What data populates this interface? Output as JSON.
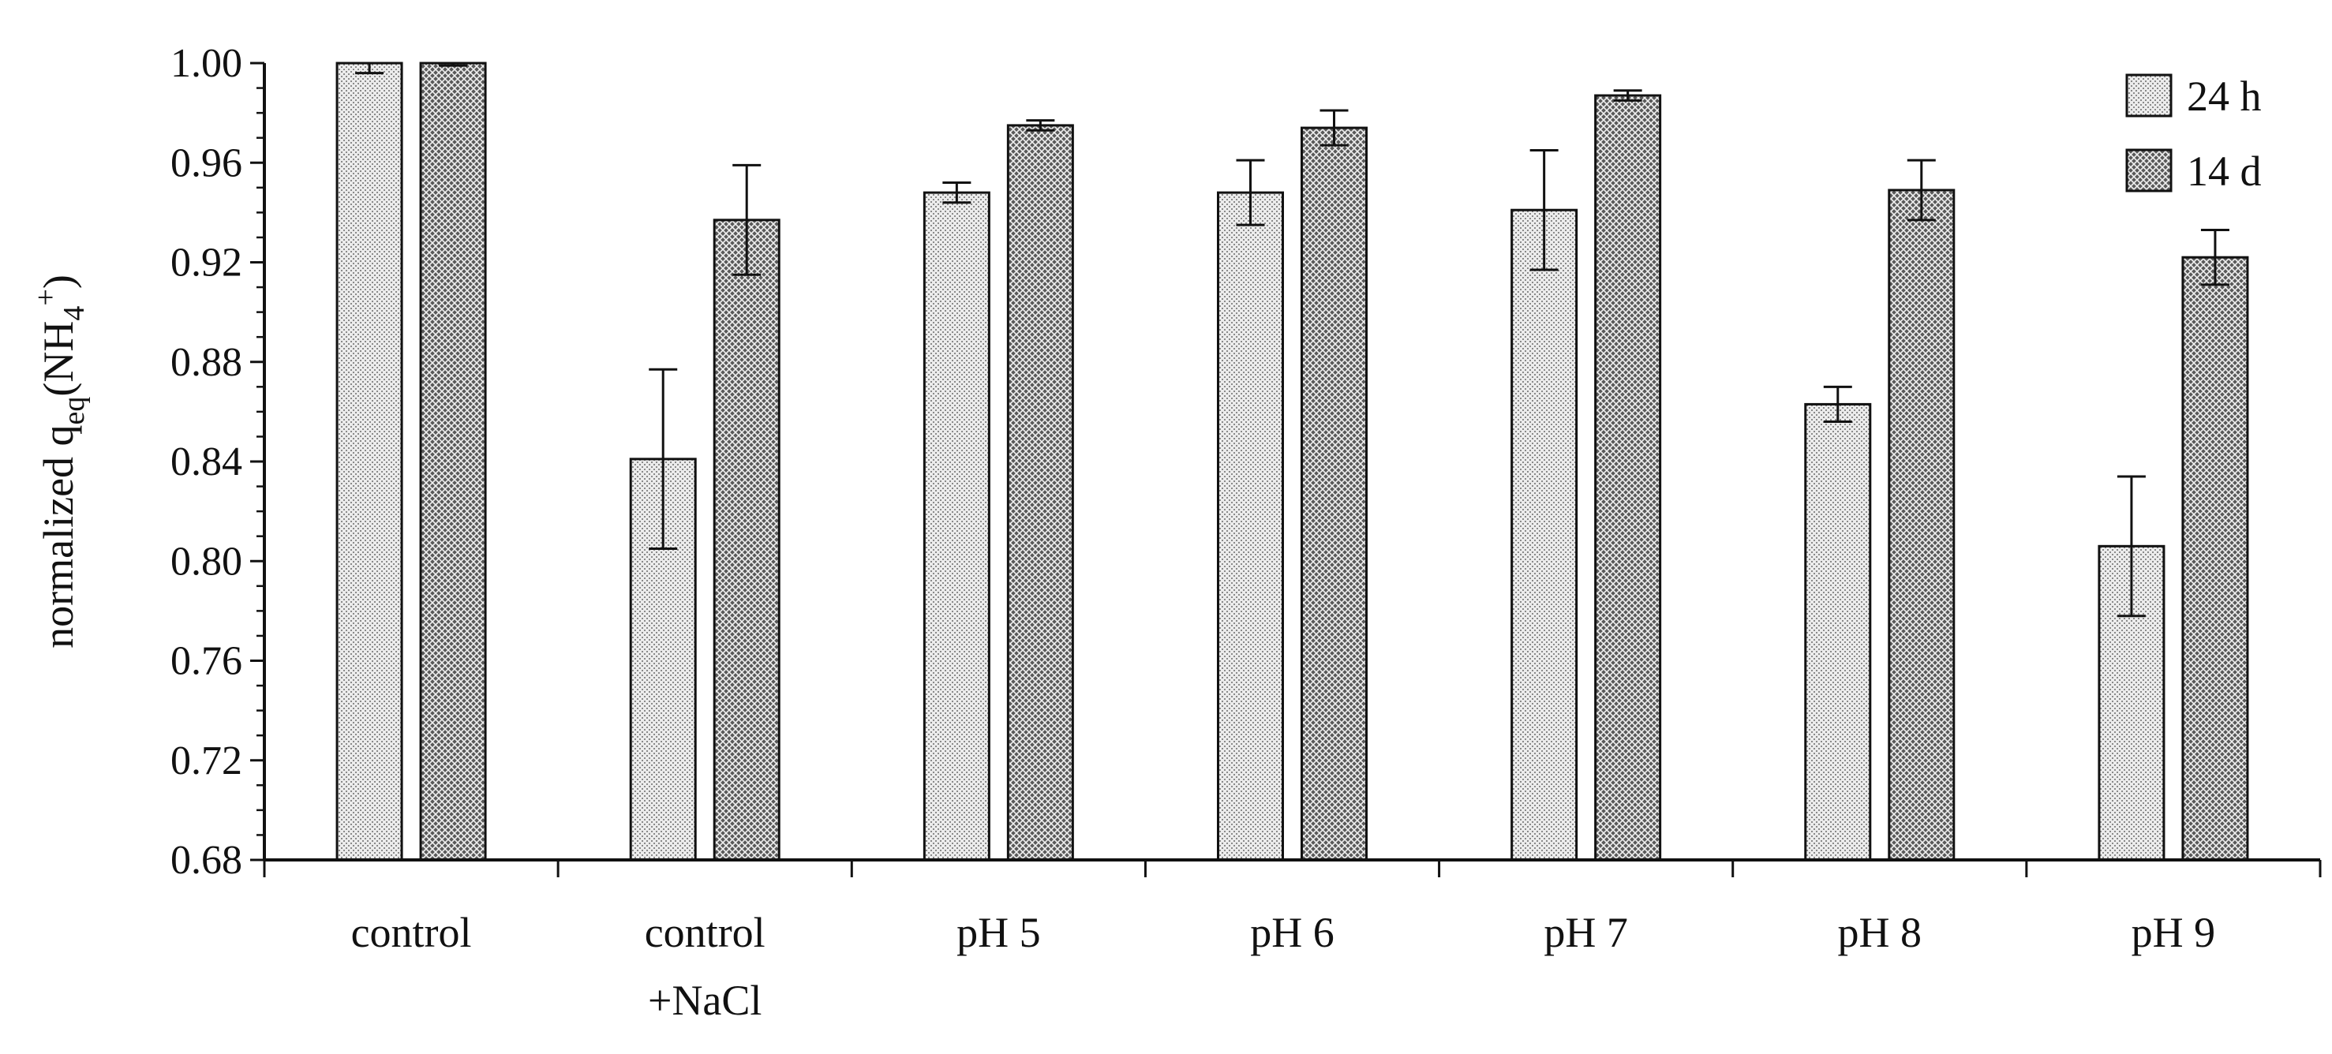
{
  "chart_data": {
    "type": "bar",
    "ylabel": {
      "prefix": "normalized q",
      "sub1": "eq",
      "mid": "(NH",
      "sub2": "4",
      "sup": "+",
      "suffix": ")"
    },
    "ylim": [
      0.68,
      1.0
    ],
    "yticks": [
      "0.68",
      "0.72",
      "0.76",
      "0.80",
      "0.84",
      "0.88",
      "0.92",
      "0.96",
      "1.00"
    ],
    "grid": false,
    "legend_position": "top-right",
    "categories": [
      [
        "control"
      ],
      [
        "control",
        "+NaCl"
      ],
      [
        "pH 5"
      ],
      [
        "pH 6"
      ],
      [
        "pH 7"
      ],
      [
        "pH 8"
      ],
      [
        "pH 9"
      ]
    ],
    "series": [
      {
        "name": "24 h",
        "pattern": "light-dotted",
        "values": [
          1.0,
          0.841,
          0.948,
          0.948,
          0.941,
          0.863,
          0.806
        ],
        "errors": [
          0.004,
          0.036,
          0.004,
          0.013,
          0.024,
          0.007,
          0.028
        ]
      },
      {
        "name": "14 d",
        "pattern": "dark-crosshatch",
        "values": [
          1.0,
          0.937,
          0.975,
          0.974,
          0.987,
          0.949,
          0.922
        ],
        "errors": [
          0.001,
          0.022,
          0.002,
          0.007,
          0.002,
          0.012,
          0.011
        ]
      }
    ]
  }
}
